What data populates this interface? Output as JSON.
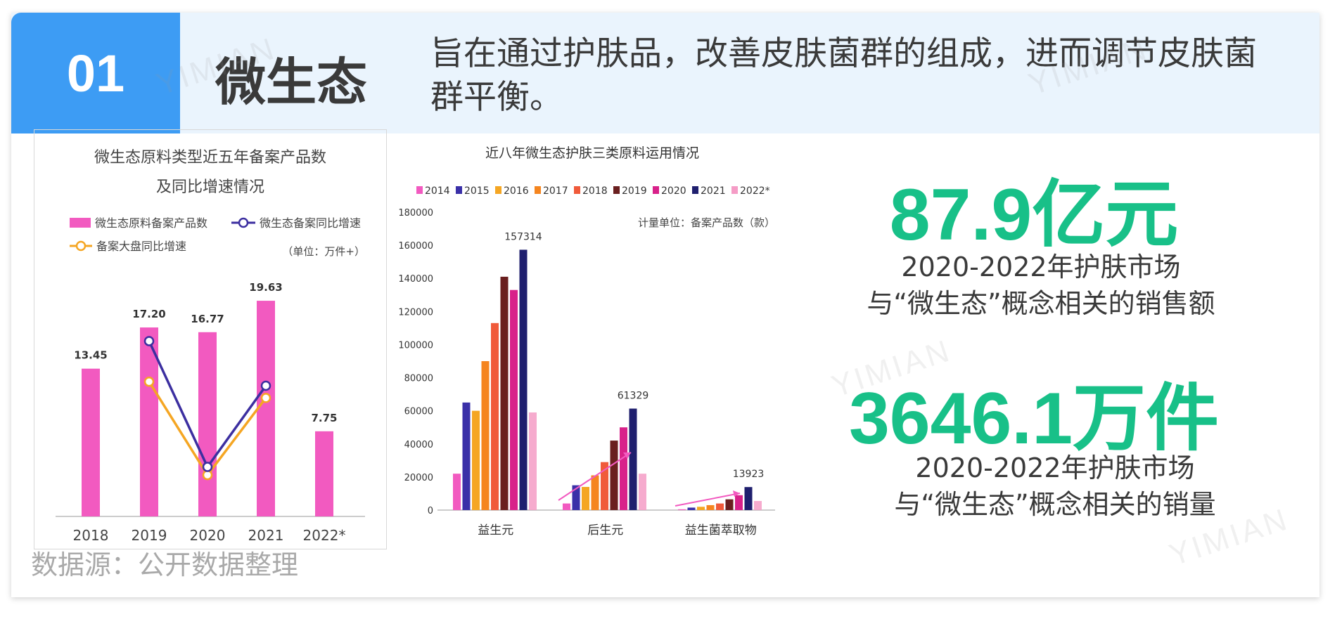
{
  "header": {
    "badge_number": "01",
    "topic": "微生态",
    "description": "旨在通过护肤品，改善皮肤菌群的组成，进而调节皮肤菌群平衡。"
  },
  "source": "数据源：公开数据整理",
  "watermark": "YIMIAN",
  "stats": [
    {
      "value": "87.9亿元",
      "caption_line1": "2020-2022年护肤市场",
      "caption_line2": "与“微生态”概念相关的销售额"
    },
    {
      "value": "3646.1万件",
      "caption_line1": "2020-2022年护肤市场",
      "caption_line2": "与“微生态”概念相关的销量"
    }
  ],
  "colors": {
    "badge_blue": "#3d9cf4",
    "header_bg": "#eaf4fd",
    "stat_green": "#18c088",
    "bar_pink": "#f25ac0",
    "line_purple": "#3c2fa0",
    "line_orange": "#f5a623"
  },
  "chart_data": [
    {
      "type": "bar",
      "title": "微生态原料类型近五年备案产品数及同比增速情况",
      "title_line1": "微生态原料类型近五年备案产品数",
      "title_line2": "及同比增速情况",
      "unit": "（单位：万件+）",
      "categories": [
        "2018",
        "2019",
        "2020",
        "2021",
        "2022*"
      ],
      "series": [
        {
          "name": "微生态原料备案产品数",
          "kind": "bar",
          "values": [
            13.45,
            17.2,
            16.77,
            19.63,
            7.75
          ],
          "labels": [
            "13.45",
            "17.20",
            "16.77",
            "19.63",
            "7.75"
          ]
        },
        {
          "name": "微生态备案同比增速",
          "kind": "line",
          "values": [
            null,
            28,
            -3,
            17,
            null
          ]
        },
        {
          "name": "备案大盘同比增速",
          "kind": "line",
          "values": [
            null,
            18,
            -5,
            14,
            null
          ]
        }
      ],
      "ylim": [
        0,
        22
      ],
      "grid": false,
      "legend": "top"
    },
    {
      "type": "bar",
      "title": "近八年微生态护肤三类原料运用情况",
      "unit": "计量单位：备案产品数（款）",
      "categories": [
        "益生元",
        "后生元",
        "益生菌萃取物"
      ],
      "x_series": [
        "2014",
        "2015",
        "2016",
        "2017",
        "2018",
        "2019",
        "2020",
        "2021",
        "2022*"
      ],
      "series": [
        {
          "name": "2014",
          "values": [
            22000,
            4000,
            500
          ]
        },
        {
          "name": "2015",
          "values": [
            65000,
            15000,
            1500
          ]
        },
        {
          "name": "2016",
          "values": [
            60000,
            14000,
            2000
          ]
        },
        {
          "name": "2017",
          "values": [
            90000,
            21000,
            3000
          ]
        },
        {
          "name": "2018",
          "values": [
            113000,
            29000,
            4000
          ]
        },
        {
          "name": "2019",
          "values": [
            141000,
            42000,
            6500
          ]
        },
        {
          "name": "2020",
          "values": [
            133000,
            50000,
            9000
          ]
        },
        {
          "name": "2021",
          "values": [
            157314,
            61329,
            13923
          ]
        },
        {
          "name": "2022*",
          "values": [
            59000,
            22000,
            5500
          ]
        }
      ],
      "annotations": [
        "157314",
        "61329",
        "13923"
      ],
      "yticks": [
        "0",
        "20000",
        "40000",
        "60000",
        "80000",
        "100000",
        "120000",
        "140000",
        "160000",
        "180000"
      ],
      "ylim": [
        0,
        180000
      ],
      "grid": false,
      "legend": "top"
    }
  ]
}
